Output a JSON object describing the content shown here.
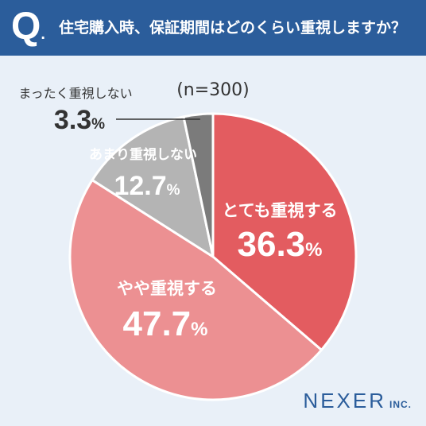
{
  "header": {
    "q_letter": "Q",
    "q_dot": ".",
    "question": "住宅購入時、保証期間はどのくらい重視しますか？"
  },
  "logo": {
    "main": "NEXER",
    "sub": "INC."
  },
  "colors": {
    "header_bg": "#2b5d9b",
    "page_bg": "#e9f0f8",
    "slice_1": "#e35c60",
    "slice_2": "#ec9092",
    "slice_3": "#b4b4b4",
    "slice_4": "#7b7b7b"
  },
  "chart_data": {
    "type": "pie",
    "title": "住宅購入時、保証期間はどのくらい重視しますか？",
    "sample_size_label": "(n=300)",
    "unit": "%",
    "slices": [
      {
        "label": "とても重視する",
        "value": 36.3,
        "value_label": "36.3",
        "color": "#e35c60"
      },
      {
        "label": "やや重視する",
        "value": 47.7,
        "value_label": "47.7",
        "color": "#ec9092"
      },
      {
        "label": "あまり重視しない",
        "value": 12.7,
        "value_label": "12.7",
        "color": "#b4b4b4"
      },
      {
        "label": "まったく重視しない",
        "value": 3.3,
        "value_label": "3.3",
        "color": "#7b7b7b"
      }
    ],
    "direction": "clockwise from top"
  }
}
